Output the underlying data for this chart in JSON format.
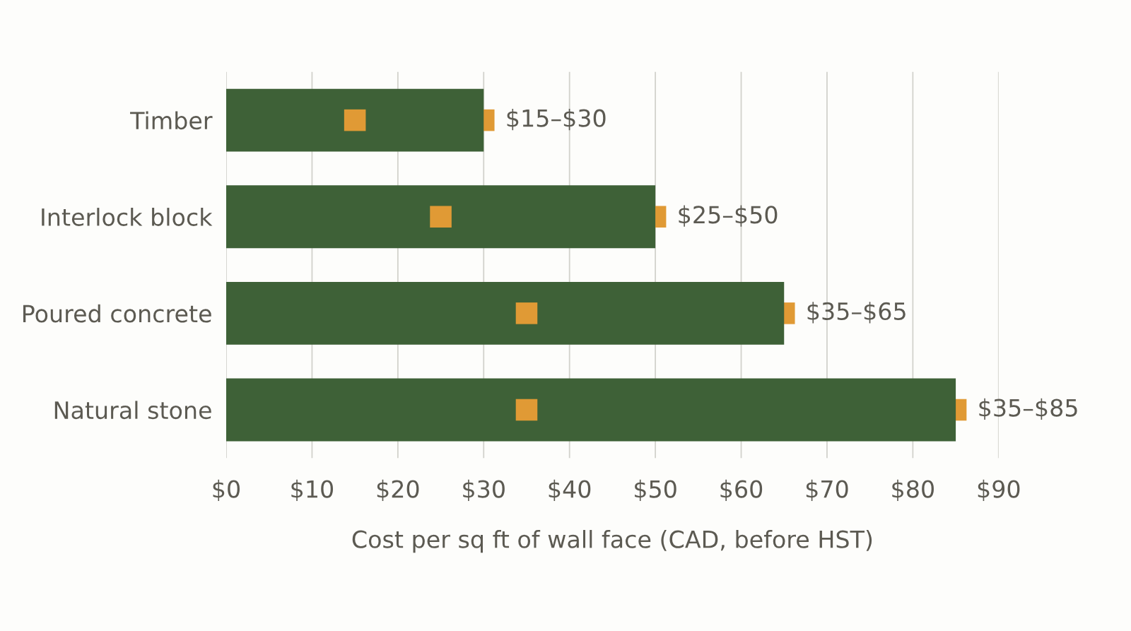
{
  "chart_data": {
    "type": "bar",
    "orientation": "horizontal",
    "xlabel": "Cost per sq ft of wall face (CAD, before HST)",
    "categories": [
      "Timber",
      "Interlock block",
      "Poured concrete",
      "Natural stone"
    ],
    "series": [
      {
        "type": "bar",
        "color": "#3e6137",
        "values": [
          30,
          50,
          65,
          85
        ],
        "value_labels": [
          "$15–$30",
          "$25–$50",
          "$35–$65",
          "$35–$85"
        ]
      },
      {
        "type": "scatter",
        "color": "#e09a35",
        "marker": "square",
        "values": [
          15,
          25,
          35,
          35
        ]
      },
      {
        "type": "scatter",
        "color": "#e09a35",
        "marker": "square",
        "values": [
          30,
          50,
          65,
          85
        ]
      }
    ],
    "xlim": [
      0,
      90
    ],
    "xticks": [
      {
        "value": 0,
        "label": "$0"
      },
      {
        "value": 10,
        "label": "$10"
      },
      {
        "value": 20,
        "label": "$20"
      },
      {
        "value": 30,
        "label": "$30"
      },
      {
        "value": 40,
        "label": "$40"
      },
      {
        "value": 50,
        "label": "$50"
      },
      {
        "value": 60,
        "label": "$60"
      },
      {
        "value": 70,
        "label": "$70"
      },
      {
        "value": 80,
        "label": "$80"
      },
      {
        "value": 90,
        "label": "$90"
      }
    ],
    "grid": "x"
  }
}
